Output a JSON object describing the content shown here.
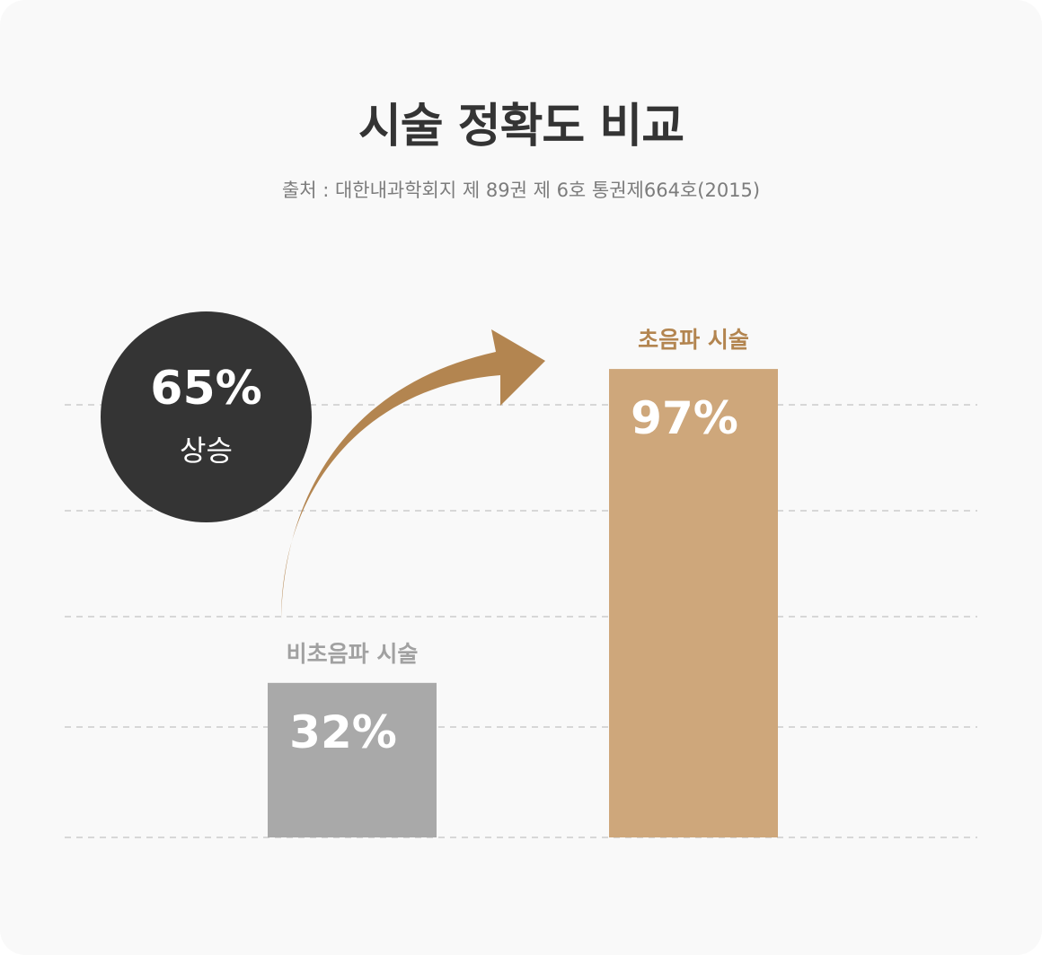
{
  "title": "시술 정확도 비교",
  "source": "출처 : 대한내과학회지 제 89권 제 6호 통권제664호(2015)",
  "highlight": {
    "value": "65%",
    "label": "상승"
  },
  "colors": {
    "background": "#f9f9f9",
    "bar_non_ultrasound": "#a9a9a9",
    "bar_ultrasound": "#cea77b",
    "label_non_ultrasound": "#a1a1a1",
    "label_ultrasound": "#b38550",
    "arrow": "#b38550",
    "circle": "#343434",
    "grid": "#cccccc"
  },
  "chart_data": {
    "type": "bar",
    "categories": [
      "비초음파 시술",
      "초음파 시술"
    ],
    "values": [
      32,
      97
    ],
    "value_labels": [
      "32%",
      "97%"
    ],
    "title": "시술 정확도 비교",
    "xlabel": "",
    "ylabel": "",
    "ylim": [
      0,
      113
    ],
    "grid": true,
    "legend": "none"
  }
}
